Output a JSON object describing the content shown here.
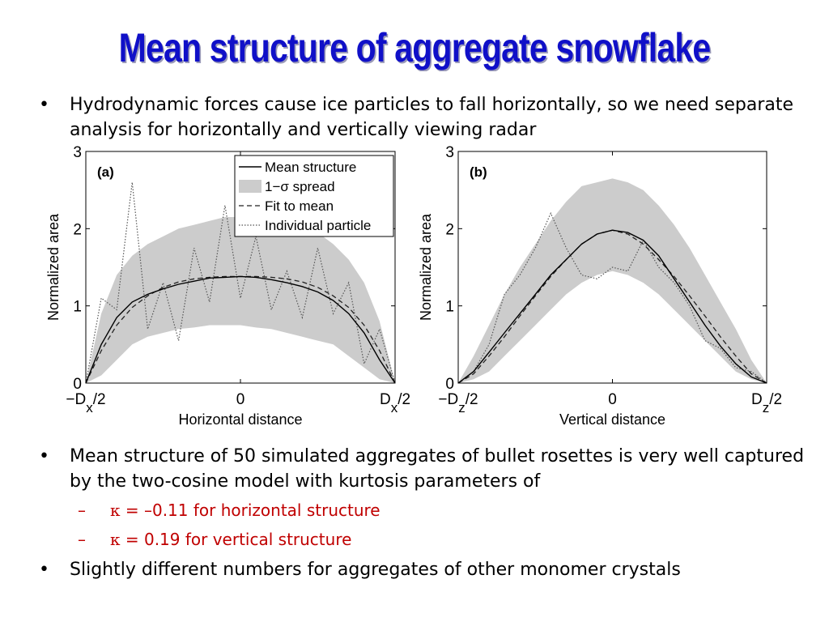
{
  "slide": {
    "title": "Mean structure of aggregate snowflake",
    "bullet_mark": "•",
    "bullet1": "Hydrodynamic forces cause ice particles to fall horizontally, so we need separate analysis for horizontally and vertically viewing radar",
    "bullet2": "Mean structure of 50 simulated aggregates of bullet rosettes is very well captured by the two-cosine model with kurtosis parameters of",
    "sub_dash": "–",
    "sub1_kappa": "κ",
    "sub1_text": " = –0.11 for horizontal structure",
    "sub2_kappa": "κ",
    "sub2_text": " = 0.19 for vertical structure",
    "bullet3": "Slightly different  numbers for aggregates of other monomer crystals",
    "colors": {
      "title": "#1010c8",
      "sub_text": "#c00000",
      "spread": "#cccccc"
    }
  },
  "chart_data": [
    {
      "type": "line",
      "panel_label": "(a)",
      "xlabel": "Horizontal distance",
      "ylabel": "Normalized area",
      "x_ticks": [
        {
          "value": -0.5,
          "main": "−D",
          "sub": "x",
          "tail": "/2"
        },
        {
          "value": 0,
          "main": "0",
          "sub": "",
          "tail": ""
        },
        {
          "value": 0.5,
          "main": "D",
          "sub": "x",
          "tail": "/2"
        }
      ],
      "y_ticks": [
        0,
        1,
        2,
        3
      ],
      "xlim": [
        -0.5,
        0.5
      ],
      "ylim": [
        0,
        3
      ],
      "legend": {
        "placement": "top-right",
        "entries": [
          "Mean structure",
          "1−σ spread",
          "Fit to mean",
          "Individual particle"
        ]
      },
      "x": [
        -0.5,
        -0.45,
        -0.4,
        -0.35,
        -0.3,
        -0.25,
        -0.2,
        -0.15,
        -0.1,
        -0.05,
        0,
        0.05,
        0.1,
        0.15,
        0.2,
        0.25,
        0.3,
        0.35,
        0.4,
        0.45,
        0.5
      ],
      "series": [
        {
          "role": "mean",
          "name": "Mean structure",
          "values": [
            0.0,
            0.5,
            0.85,
            1.05,
            1.15,
            1.22,
            1.28,
            1.32,
            1.36,
            1.37,
            1.38,
            1.37,
            1.34,
            1.3,
            1.25,
            1.18,
            1.07,
            0.9,
            0.65,
            0.3,
            0.0
          ]
        },
        {
          "role": "fit",
          "name": "Fit to mean",
          "values": [
            0.0,
            0.42,
            0.75,
            0.98,
            1.13,
            1.24,
            1.31,
            1.35,
            1.37,
            1.38,
            1.38,
            1.38,
            1.37,
            1.35,
            1.31,
            1.24,
            1.13,
            0.98,
            0.75,
            0.42,
            0.0
          ]
        },
        {
          "role": "individual",
          "name": "Individual particle",
          "values": [
            0.0,
            1.1,
            0.95,
            2.6,
            0.7,
            1.3,
            0.55,
            1.75,
            1.05,
            2.3,
            1.1,
            1.9,
            0.95,
            1.45,
            0.85,
            1.75,
            0.9,
            1.3,
            0.25,
            0.7,
            0.0
          ]
        },
        {
          "role": "spread_upper",
          "name": "1−σ spread",
          "values": [
            0.0,
            0.9,
            1.4,
            1.65,
            1.8,
            1.9,
            2.0,
            2.05,
            2.1,
            2.15,
            2.15,
            2.15,
            2.1,
            2.05,
            2.0,
            1.95,
            1.8,
            1.6,
            1.3,
            0.8,
            0.0
          ]
        },
        {
          "role": "spread_lower",
          "name": "1−σ spread",
          "values": [
            0.0,
            0.1,
            0.3,
            0.5,
            0.6,
            0.65,
            0.7,
            0.72,
            0.75,
            0.75,
            0.75,
            0.72,
            0.7,
            0.65,
            0.6,
            0.55,
            0.5,
            0.35,
            0.2,
            0.05,
            0.0
          ]
        }
      ]
    },
    {
      "type": "line",
      "panel_label": "(b)",
      "xlabel": "Vertical distance",
      "ylabel": "Normalized area",
      "x_ticks": [
        {
          "value": -0.5,
          "main": "−D",
          "sub": "z",
          "tail": "/2"
        },
        {
          "value": 0,
          "main": "0",
          "sub": "",
          "tail": ""
        },
        {
          "value": 0.5,
          "main": "D",
          "sub": "z",
          "tail": "/2"
        }
      ],
      "y_ticks": [
        0,
        1,
        2,
        3
      ],
      "xlim": [
        -0.5,
        0.5
      ],
      "ylim": [
        0,
        3
      ],
      "x": [
        -0.5,
        -0.45,
        -0.4,
        -0.35,
        -0.3,
        -0.25,
        -0.2,
        -0.15,
        -0.1,
        -0.05,
        0,
        0.05,
        0.1,
        0.15,
        0.2,
        0.25,
        0.3,
        0.35,
        0.4,
        0.45,
        0.5
      ],
      "series": [
        {
          "role": "mean",
          "name": "Mean structure",
          "values": [
            0.0,
            0.15,
            0.4,
            0.65,
            0.9,
            1.15,
            1.4,
            1.6,
            1.8,
            1.93,
            1.98,
            1.95,
            1.85,
            1.65,
            1.35,
            1.05,
            0.75,
            0.48,
            0.25,
            0.08,
            0.0
          ]
        },
        {
          "role": "fit",
          "name": "Fit to mean",
          "values": [
            0.0,
            0.12,
            0.35,
            0.6,
            0.87,
            1.13,
            1.38,
            1.6,
            1.8,
            1.93,
            1.98,
            1.93,
            1.8,
            1.6,
            1.38,
            1.13,
            0.87,
            0.6,
            0.35,
            0.12,
            0.0
          ]
        },
        {
          "role": "individual",
          "name": "Individual particle",
          "values": [
            0.0,
            0.15,
            0.5,
            1.15,
            1.4,
            1.75,
            2.2,
            1.75,
            1.4,
            1.35,
            1.5,
            1.45,
            1.85,
            1.5,
            1.3,
            1.0,
            0.55,
            0.45,
            0.2,
            0.15,
            0.0
          ]
        },
        {
          "role": "spread_upper",
          "name": "1−σ spread",
          "values": [
            0.0,
            0.35,
            0.75,
            1.15,
            1.5,
            1.8,
            2.1,
            2.35,
            2.55,
            2.6,
            2.65,
            2.6,
            2.5,
            2.3,
            2.05,
            1.75,
            1.4,
            1.05,
            0.7,
            0.3,
            0.0
          ]
        },
        {
          "role": "spread_lower",
          "name": "1−σ spread",
          "values": [
            0.0,
            0.05,
            0.15,
            0.35,
            0.55,
            0.75,
            0.95,
            1.15,
            1.3,
            1.4,
            1.45,
            1.4,
            1.3,
            1.15,
            0.95,
            0.75,
            0.55,
            0.35,
            0.15,
            0.05,
            0.0
          ]
        }
      ]
    }
  ]
}
